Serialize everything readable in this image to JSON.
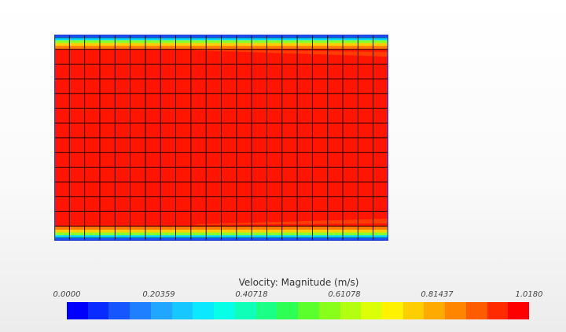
{
  "legend": {
    "title": "Velocity: Magnitude (m/s)",
    "ticks": [
      "0.0000",
      "0.20359",
      "0.40718",
      "0.61078",
      "0.81437",
      "1.0180"
    ],
    "min": 0.0,
    "max": 1.018,
    "colormap": [
      "#0000ff",
      "#0a2bff",
      "#1556ff",
      "#1f80ff",
      "#21a6ff",
      "#16c8ff",
      "#0ce8ff",
      "#07ffe8",
      "#10ffb8",
      "#1aff85",
      "#2dff55",
      "#5aff2c",
      "#88ff1a",
      "#b4ff10",
      "#dcff08",
      "#fff200",
      "#ffce00",
      "#ffaa00",
      "#ff8400",
      "#ff5c00",
      "#ff2a00",
      "#ff0000"
    ]
  },
  "contour": {
    "mesh_columns": 22,
    "mesh_rows": 14,
    "boundary_color": "#2040d0",
    "wall_bands": [
      "#1a4dff",
      "#08d8ff",
      "#8aff30",
      "#ffd000",
      "#ff7a00"
    ],
    "core_color": "#ff1500",
    "developing_color": "#ff3d00",
    "mesh_line_color": "#000000"
  }
}
